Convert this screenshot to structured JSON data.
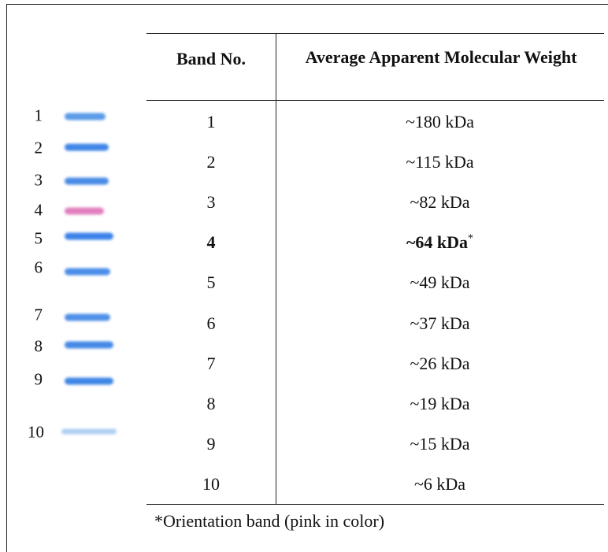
{
  "ladder": {
    "labels": [
      "1",
      "2",
      "3",
      "4",
      "5",
      "6",
      "7",
      "8",
      "9",
      "10"
    ],
    "colors": [
      "#5b9be8",
      "#3f86e6",
      "#4a8be6",
      "#e27fbf",
      "#3c82ea",
      "#4b8ee8",
      "#4f90e8",
      "#4689e6",
      "#3f86e6",
      "#9cc3f0"
    ]
  },
  "table": {
    "header": [
      "Band No.",
      "Average Apparent Molecular Weight"
    ],
    "rows": [
      {
        "band": "1",
        "weight": "~180 kDa"
      },
      {
        "band": "2",
        "weight": "~115 kDa"
      },
      {
        "band": "3",
        "weight": "~82 kDa"
      },
      {
        "band": "4",
        "weight": "~64 kDa",
        "mark": "*",
        "bold": true
      },
      {
        "band": "5",
        "weight": "~49 kDa"
      },
      {
        "band": "6",
        "weight": "~37 kDa"
      },
      {
        "band": "7",
        "weight": "~26 kDa"
      },
      {
        "band": "8",
        "weight": "~19 kDa"
      },
      {
        "band": "9",
        "weight": "~15 kDa"
      },
      {
        "band": "10",
        "weight": "~6 kDa"
      }
    ],
    "footnote": "*Orientation band (pink in color)"
  }
}
